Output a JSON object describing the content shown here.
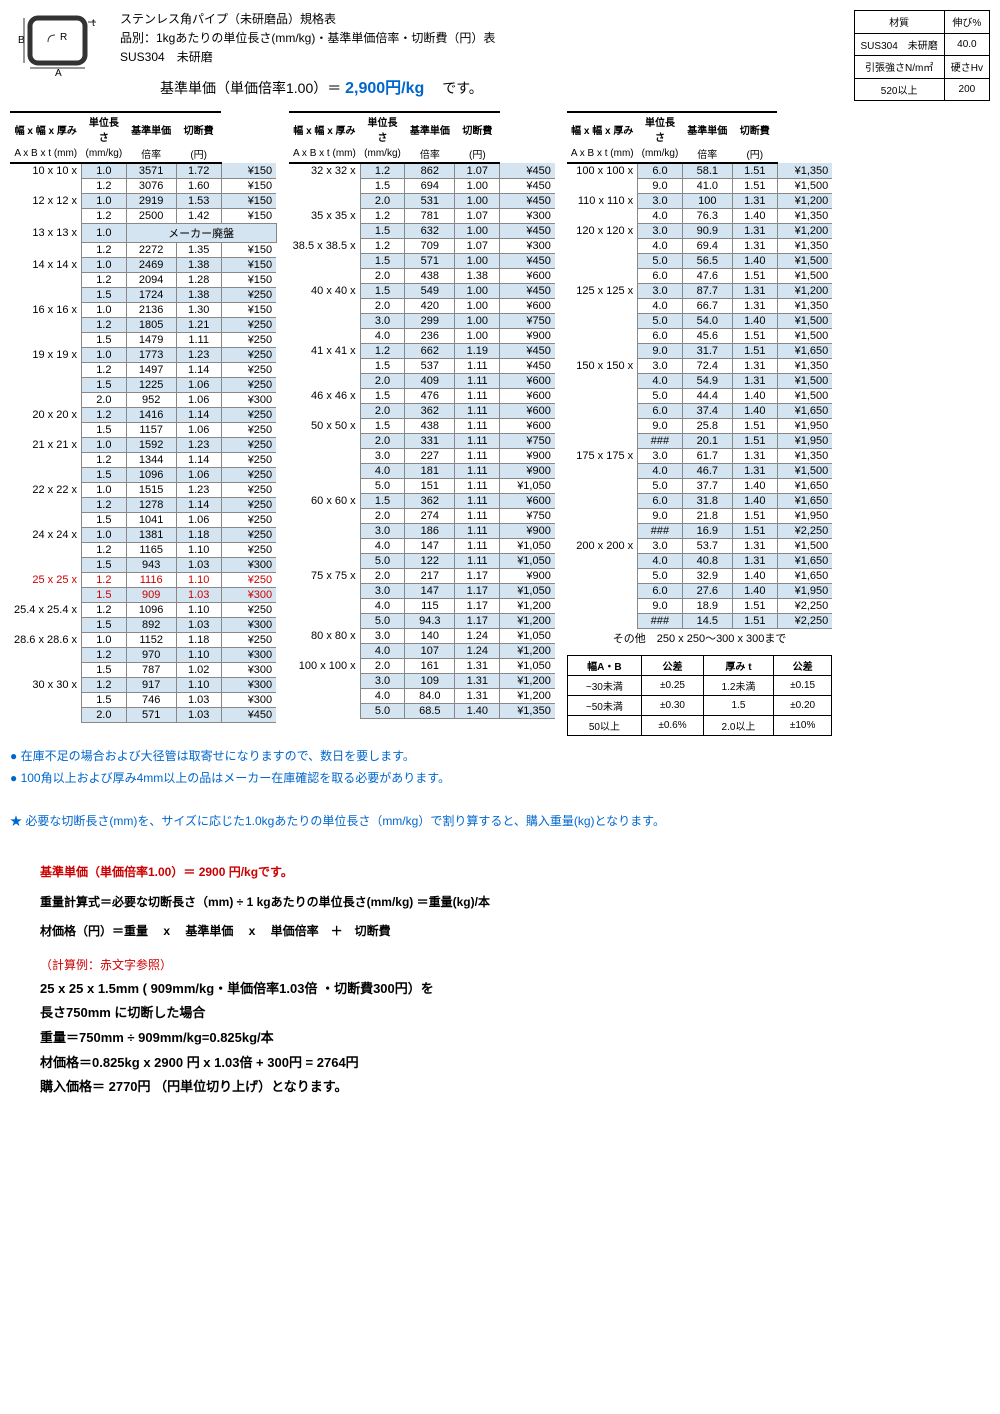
{
  "header": {
    "title1": "ステンレス角パイプ（未研磨品）規格表",
    "title2": "品別：1kgあたりの単位長さ(mm/kg)・基準単価倍率・切断費（円）表",
    "material": "SUS304　未研磨",
    "basePriceLabel": "基準単価（単価倍率1.00）＝ ",
    "basePriceValue": "2,900円/kg",
    "basePriceSuffix": " 　です。"
  },
  "materialTable": {
    "rows": [
      [
        "材質",
        "伸び%"
      ],
      [
        "SUS304　未研磨",
        "40.0"
      ],
      [
        "引張強さN/m㎡",
        "硬さHv"
      ],
      [
        "520以上",
        "200"
      ]
    ]
  },
  "columns": {
    "c1": "幅 x 幅 x 厚み",
    "c1sub": "A x B x t (mm)",
    "c2": "単位長さ",
    "c2sub": "(mm/kg)",
    "c3": "基準単価",
    "c3sub": "倍率",
    "c4": "切断費",
    "c4sub": "(円)"
  },
  "table1": [
    {
      "size": "10 x 10 x",
      "t": "1.0",
      "len": "3571",
      "rate": "1.72",
      "cut": "¥150",
      "shaded": true
    },
    {
      "size": "",
      "t": "1.2",
      "len": "3076",
      "rate": "1.60",
      "cut": "¥150"
    },
    {
      "size": "12 x 12 x",
      "t": "1.0",
      "len": "2919",
      "rate": "1.53",
      "cut": "¥150",
      "shaded": true
    },
    {
      "size": "",
      "t": "1.2",
      "len": "2500",
      "rate": "1.42",
      "cut": "¥150"
    },
    {
      "size": "13 x 13 x",
      "t": "1.0",
      "merged": "メーカー廃盤",
      "shaded": true
    },
    {
      "size": "",
      "t": "1.2",
      "len": "2272",
      "rate": "1.35",
      "cut": "¥150"
    },
    {
      "size": "14 x 14 x",
      "t": "1.0",
      "len": "2469",
      "rate": "1.38",
      "cut": "¥150",
      "shaded": true
    },
    {
      "size": "",
      "t": "1.2",
      "len": "2094",
      "rate": "1.28",
      "cut": "¥150"
    },
    {
      "size": "",
      "t": "1.5",
      "len": "1724",
      "rate": "1.38",
      "cut": "¥250",
      "shaded": true
    },
    {
      "size": "16 x 16 x",
      "t": "1.0",
      "len": "2136",
      "rate": "1.30",
      "cut": "¥150"
    },
    {
      "size": "",
      "t": "1.2",
      "len": "1805",
      "rate": "1.21",
      "cut": "¥250",
      "shaded": true
    },
    {
      "size": "",
      "t": "1.5",
      "len": "1479",
      "rate": "1.11",
      "cut": "¥250"
    },
    {
      "size": "19 x 19 x",
      "t": "1.0",
      "len": "1773",
      "rate": "1.23",
      "cut": "¥250",
      "shaded": true
    },
    {
      "size": "",
      "t": "1.2",
      "len": "1497",
      "rate": "1.14",
      "cut": "¥250"
    },
    {
      "size": "",
      "t": "1.5",
      "len": "1225",
      "rate": "1.06",
      "cut": "¥250",
      "shaded": true
    },
    {
      "size": "",
      "t": "2.0",
      "len": "952",
      "rate": "1.06",
      "cut": "¥300"
    },
    {
      "size": "20 x 20 x",
      "t": "1.2",
      "len": "1416",
      "rate": "1.14",
      "cut": "¥250",
      "shaded": true
    },
    {
      "size": "",
      "t": "1.5",
      "len": "1157",
      "rate": "1.06",
      "cut": "¥250"
    },
    {
      "size": "21 x 21 x",
      "t": "1.0",
      "len": "1592",
      "rate": "1.23",
      "cut": "¥250",
      "shaded": true
    },
    {
      "size": "",
      "t": "1.2",
      "len": "1344",
      "rate": "1.14",
      "cut": "¥250"
    },
    {
      "size": "",
      "t": "1.5",
      "len": "1096",
      "rate": "1.06",
      "cut": "¥250",
      "shaded": true
    },
    {
      "size": "22 x 22 x",
      "t": "1.0",
      "len": "1515",
      "rate": "1.23",
      "cut": "¥250"
    },
    {
      "size": "",
      "t": "1.2",
      "len": "1278",
      "rate": "1.14",
      "cut": "¥250",
      "shaded": true
    },
    {
      "size": "",
      "t": "1.5",
      "len": "1041",
      "rate": "1.06",
      "cut": "¥250"
    },
    {
      "size": "24 x 24 x",
      "t": "1.0",
      "len": "1381",
      "rate": "1.18",
      "cut": "¥250",
      "shaded": true
    },
    {
      "size": "",
      "t": "1.2",
      "len": "1165",
      "rate": "1.10",
      "cut": "¥250"
    },
    {
      "size": "",
      "t": "1.5",
      "len": "943",
      "rate": "1.03",
      "cut": "¥300",
      "shaded": true
    },
    {
      "size": "25 x 25 x",
      "t": "1.2",
      "len": "1116",
      "rate": "1.10",
      "cut": "¥250",
      "red": true
    },
    {
      "size": "",
      "t": "1.5",
      "len": "909",
      "rate": "1.03",
      "cut": "¥300",
      "shaded": true,
      "red": true
    },
    {
      "size": "25.4 x 25.4 x",
      "t": "1.2",
      "len": "1096",
      "rate": "1.10",
      "cut": "¥250"
    },
    {
      "size": "",
      "t": "1.5",
      "len": "892",
      "rate": "1.03",
      "cut": "¥300",
      "shaded": true
    },
    {
      "size": "28.6 x 28.6 x",
      "t": "1.0",
      "len": "1152",
      "rate": "1.18",
      "cut": "¥250"
    },
    {
      "size": "",
      "t": "1.2",
      "len": "970",
      "rate": "1.10",
      "cut": "¥300",
      "shaded": true
    },
    {
      "size": "",
      "t": "1.5",
      "len": "787",
      "rate": "1.02",
      "cut": "¥300"
    },
    {
      "size": "30 x 30 x",
      "t": "1.2",
      "len": "917",
      "rate": "1.10",
      "cut": "¥300",
      "shaded": true
    },
    {
      "size": "",
      "t": "1.5",
      "len": "746",
      "rate": "1.03",
      "cut": "¥300"
    },
    {
      "size": "",
      "t": "2.0",
      "len": "571",
      "rate": "1.03",
      "cut": "¥450",
      "shaded": true
    }
  ],
  "table2": [
    {
      "size": "32 x 32 x",
      "t": "1.2",
      "len": "862",
      "rate": "1.07",
      "cut": "¥450",
      "shaded": true
    },
    {
      "size": "",
      "t": "1.5",
      "len": "694",
      "rate": "1.00",
      "cut": "¥450"
    },
    {
      "size": "",
      "t": "2.0",
      "len": "531",
      "rate": "1.00",
      "cut": "¥450",
      "shaded": true
    },
    {
      "size": "35 x 35 x",
      "t": "1.2",
      "len": "781",
      "rate": "1.07",
      "cut": "¥300"
    },
    {
      "size": "",
      "t": "1.5",
      "len": "632",
      "rate": "1.00",
      "cut": "¥450",
      "shaded": true
    },
    {
      "size": "38.5 x 38.5 x",
      "t": "1.2",
      "len": "709",
      "rate": "1.07",
      "cut": "¥300"
    },
    {
      "size": "",
      "t": "1.5",
      "len": "571",
      "rate": "1.00",
      "cut": "¥450",
      "shaded": true
    },
    {
      "size": "",
      "t": "2.0",
      "len": "438",
      "rate": "1.38",
      "cut": "¥600"
    },
    {
      "size": "40 x 40 x",
      "t": "1.5",
      "len": "549",
      "rate": "1.00",
      "cut": "¥450",
      "shaded": true
    },
    {
      "size": "",
      "t": "2.0",
      "len": "420",
      "rate": "1.00",
      "cut": "¥600"
    },
    {
      "size": "",
      "t": "3.0",
      "len": "299",
      "rate": "1.00",
      "cut": "¥750",
      "shaded": true
    },
    {
      "size": "",
      "t": "4.0",
      "len": "236",
      "rate": "1.00",
      "cut": "¥900"
    },
    {
      "size": "41 x 41 x",
      "t": "1.2",
      "len": "662",
      "rate": "1.19",
      "cut": "¥450",
      "shaded": true
    },
    {
      "size": "",
      "t": "1.5",
      "len": "537",
      "rate": "1.11",
      "cut": "¥450"
    },
    {
      "size": "",
      "t": "2.0",
      "len": "409",
      "rate": "1.11",
      "cut": "¥600",
      "shaded": true
    },
    {
      "size": "46 x 46 x",
      "t": "1.5",
      "len": "476",
      "rate": "1.11",
      "cut": "¥600"
    },
    {
      "size": "",
      "t": "2.0",
      "len": "362",
      "rate": "1.11",
      "cut": "¥600",
      "shaded": true
    },
    {
      "size": "50 x 50 x",
      "t": "1.5",
      "len": "438",
      "rate": "1.11",
      "cut": "¥600"
    },
    {
      "size": "",
      "t": "2.0",
      "len": "331",
      "rate": "1.11",
      "cut": "¥750",
      "shaded": true
    },
    {
      "size": "",
      "t": "3.0",
      "len": "227",
      "rate": "1.11",
      "cut": "¥900"
    },
    {
      "size": "",
      "t": "4.0",
      "len": "181",
      "rate": "1.11",
      "cut": "¥900",
      "shaded": true
    },
    {
      "size": "",
      "t": "5.0",
      "len": "151",
      "rate": "1.11",
      "cut": "¥1,050"
    },
    {
      "size": "60 x 60 x",
      "t": "1.5",
      "len": "362",
      "rate": "1.11",
      "cut": "¥600",
      "shaded": true
    },
    {
      "size": "",
      "t": "2.0",
      "len": "274",
      "rate": "1.11",
      "cut": "¥750"
    },
    {
      "size": "",
      "t": "3.0",
      "len": "186",
      "rate": "1.11",
      "cut": "¥900",
      "shaded": true
    },
    {
      "size": "",
      "t": "4.0",
      "len": "147",
      "rate": "1.11",
      "cut": "¥1,050"
    },
    {
      "size": "",
      "t": "5.0",
      "len": "122",
      "rate": "1.11",
      "cut": "¥1,050",
      "shaded": true
    },
    {
      "size": "75 x 75 x",
      "t": "2.0",
      "len": "217",
      "rate": "1.17",
      "cut": "¥900"
    },
    {
      "size": "",
      "t": "3.0",
      "len": "147",
      "rate": "1.17",
      "cut": "¥1,050",
      "shaded": true
    },
    {
      "size": "",
      "t": "4.0",
      "len": "115",
      "rate": "1.17",
      "cut": "¥1,200"
    },
    {
      "size": "",
      "t": "5.0",
      "len": "94.3",
      "rate": "1.17",
      "cut": "¥1,200",
      "shaded": true
    },
    {
      "size": "80 x 80 x",
      "t": "3.0",
      "len": "140",
      "rate": "1.24",
      "cut": "¥1,050"
    },
    {
      "size": "",
      "t": "4.0",
      "len": "107",
      "rate": "1.24",
      "cut": "¥1,200",
      "shaded": true
    },
    {
      "size": "100 x 100 x",
      "t": "2.0",
      "len": "161",
      "rate": "1.31",
      "cut": "¥1,050"
    },
    {
      "size": "",
      "t": "3.0",
      "len": "109",
      "rate": "1.31",
      "cut": "¥1,200",
      "shaded": true
    },
    {
      "size": "",
      "t": "4.0",
      "len": "84.0",
      "rate": "1.31",
      "cut": "¥1,200"
    },
    {
      "size": "",
      "t": "5.0",
      "len": "68.5",
      "rate": "1.40",
      "cut": "¥1,350",
      "shaded": true
    }
  ],
  "table3": [
    {
      "size": "100 x 100 x",
      "t": "6.0",
      "len": "58.1",
      "rate": "1.51",
      "cut": "¥1,350",
      "shaded": true
    },
    {
      "size": "",
      "t": "9.0",
      "len": "41.0",
      "rate": "1.51",
      "cut": "¥1,500"
    },
    {
      "size": "110 x 110 x",
      "t": "3.0",
      "len": "100",
      "rate": "1.31",
      "cut": "¥1,200",
      "shaded": true
    },
    {
      "size": "",
      "t": "4.0",
      "len": "76.3",
      "rate": "1.40",
      "cut": "¥1,350"
    },
    {
      "size": "120 x 120 x",
      "t": "3.0",
      "len": "90.9",
      "rate": "1.31",
      "cut": "¥1,200",
      "shaded": true
    },
    {
      "size": "",
      "t": "4.0",
      "len": "69.4",
      "rate": "1.31",
      "cut": "¥1,350"
    },
    {
      "size": "",
      "t": "5.0",
      "len": "56.5",
      "rate": "1.40",
      "cut": "¥1,500",
      "shaded": true
    },
    {
      "size": "",
      "t": "6.0",
      "len": "47.6",
      "rate": "1.51",
      "cut": "¥1,500"
    },
    {
      "size": "125 x 125 x",
      "t": "3.0",
      "len": "87.7",
      "rate": "1.31",
      "cut": "¥1,200",
      "shaded": true
    },
    {
      "size": "",
      "t": "4.0",
      "len": "66.7",
      "rate": "1.31",
      "cut": "¥1,350"
    },
    {
      "size": "",
      "t": "5.0",
      "len": "54.0",
      "rate": "1.40",
      "cut": "¥1,500",
      "shaded": true
    },
    {
      "size": "",
      "t": "6.0",
      "len": "45.6",
      "rate": "1.51",
      "cut": "¥1,500"
    },
    {
      "size": "",
      "t": "9.0",
      "len": "31.7",
      "rate": "1.51",
      "cut": "¥1,650",
      "shaded": true
    },
    {
      "size": "150 x 150 x",
      "t": "3.0",
      "len": "72.4",
      "rate": "1.31",
      "cut": "¥1,350"
    },
    {
      "size": "",
      "t": "4.0",
      "len": "54.9",
      "rate": "1.31",
      "cut": "¥1,500",
      "shaded": true
    },
    {
      "size": "",
      "t": "5.0",
      "len": "44.4",
      "rate": "1.40",
      "cut": "¥1,500"
    },
    {
      "size": "",
      "t": "6.0",
      "len": "37.4",
      "rate": "1.40",
      "cut": "¥1,650",
      "shaded": true
    },
    {
      "size": "",
      "t": "9.0",
      "len": "25.8",
      "rate": "1.51",
      "cut": "¥1,950"
    },
    {
      "size": "",
      "t": "###",
      "len": "20.1",
      "rate": "1.51",
      "cut": "¥1,950",
      "shaded": true
    },
    {
      "size": "175 x 175 x",
      "t": "3.0",
      "len": "61.7",
      "rate": "1.31",
      "cut": "¥1,350"
    },
    {
      "size": "",
      "t": "4.0",
      "len": "46.7",
      "rate": "1.31",
      "cut": "¥1,500",
      "shaded": true
    },
    {
      "size": "",
      "t": "5.0",
      "len": "37.7",
      "rate": "1.40",
      "cut": "¥1,650"
    },
    {
      "size": "",
      "t": "6.0",
      "len": "31.8",
      "rate": "1.40",
      "cut": "¥1,650",
      "shaded": true
    },
    {
      "size": "",
      "t": "9.0",
      "len": "21.8",
      "rate": "1.51",
      "cut": "¥1,950"
    },
    {
      "size": "",
      "t": "###",
      "len": "16.9",
      "rate": "1.51",
      "cut": "¥2,250",
      "shaded": true
    },
    {
      "size": "200 x 200 x",
      "t": "3.0",
      "len": "53.7",
      "rate": "1.31",
      "cut": "¥1,500"
    },
    {
      "size": "",
      "t": "4.0",
      "len": "40.8",
      "rate": "1.31",
      "cut": "¥1,650",
      "shaded": true
    },
    {
      "size": "",
      "t": "5.0",
      "len": "32.9",
      "rate": "1.40",
      "cut": "¥1,650"
    },
    {
      "size": "",
      "t": "6.0",
      "len": "27.6",
      "rate": "1.40",
      "cut": "¥1,950",
      "shaded": true
    },
    {
      "size": "",
      "t": "9.0",
      "len": "18.9",
      "rate": "1.51",
      "cut": "¥2,250"
    },
    {
      "size": "",
      "t": "###",
      "len": "14.5",
      "rate": "1.51",
      "cut": "¥2,250",
      "shaded": true
    }
  ],
  "otherNote": "その他　250 x 250～300 x 300まで",
  "tolerance": {
    "head": [
      "幅A・B",
      "公差",
      "厚み t",
      "公差"
    ],
    "rows": [
      [
        "~30未満",
        "±0.25",
        "1.2未満",
        "±0.15"
      ],
      [
        "~50未満",
        "±0.30",
        "1.5",
        "±0.20"
      ],
      [
        "50以上",
        "±0.6%",
        "2.0以上",
        "±10%"
      ]
    ]
  },
  "notes": {
    "b1": "● 在庫不足の場合および大径管は取寄せになりますので、数日を要します。",
    "b2": "● 100角以上および厚み4mm以上の品はメーカー在庫確認を取る必要があります。",
    "star": "★ 必要な切断長さ(mm)を、サイズに応じた1.0kgあたりの単位長さ（mm/kg）で割り算すると、購入重量(kg)となります。",
    "red": "基準単価（単価倍率1.00）＝ 2900 円/kgです。",
    "calc1": "重量計算式＝必要な切断長さ（mm) ÷ 1 kgあたりの単位長さ(mm/kg) ＝重量(kg)/本",
    "calc2": "材価格（円）＝重量　 x 　基準単価　 x 　単価倍率　＋　切断費",
    "exHead": "（計算例：赤文字参照）",
    "ex1": "25  x  25  x 1.5mm ( 909mm/kg・単価倍率1.03倍 ・切断費300円）を",
    "ex2": "長さ750mm に切断した場合",
    "ex3": "重量＝750mm ÷ 909mm/kg=0.825kg/本",
    "ex4": "材価格＝0.825kg x 2900 円 x 1.03倍 + 300円 = 2764円",
    "ex5": "購入価格＝ 2770円 （円単位切り上げ）となります。"
  }
}
